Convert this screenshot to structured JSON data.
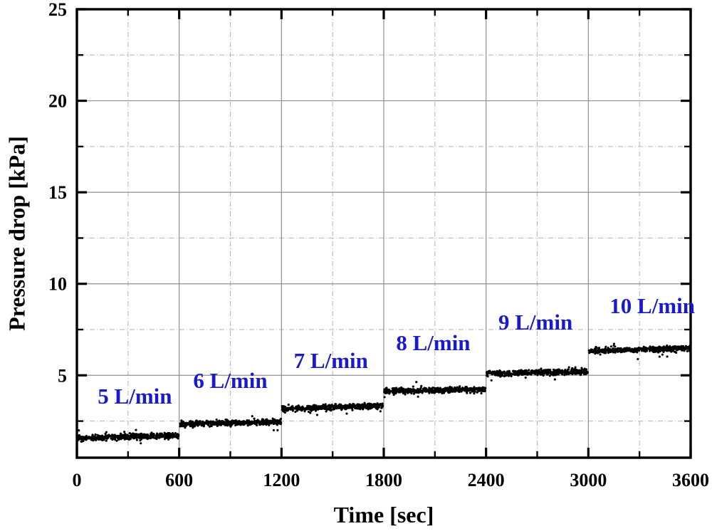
{
  "chart_data": {
    "type": "scatter",
    "title": "",
    "xlabel": "Time [sec]",
    "ylabel": "Pressure drop [kPa]",
    "xlim": [
      0,
      3600
    ],
    "ylim": [
      0.5,
      25
    ],
    "x_major_ticks": [
      0,
      600,
      1200,
      1800,
      2400,
      3000,
      3600
    ],
    "x_minor_ticks": [
      300,
      900,
      1500,
      2100,
      2700,
      3300
    ],
    "y_major_ticks": [
      5,
      10,
      15,
      20,
      25
    ],
    "y_minor_ticks": [
      2.5,
      7.5,
      12.5,
      17.5,
      22.5
    ],
    "grid": {
      "major_style": "solid",
      "major_color": "#8f8f8f",
      "minor_style": "dashed",
      "minor_color": "#b2b2b2"
    },
    "legend": "none",
    "background_color": "#ffffff",
    "frame_color": "#000000",
    "point_color": "#000000",
    "annotation_color": "#1a1acd",
    "series": [
      {
        "name": "5 L/min",
        "t_start": 0,
        "t_end": 600,
        "mean_kPa": 1.65,
        "drift_kPa": 0.15
      },
      {
        "name": "6 L/min",
        "t_start": 600,
        "t_end": 1200,
        "mean_kPa": 2.4,
        "drift_kPa": 0.12
      },
      {
        "name": "7 L/min",
        "t_start": 1200,
        "t_end": 1800,
        "mean_kPa": 3.25,
        "drift_kPa": 0.15
      },
      {
        "name": "8 L/min",
        "t_start": 1800,
        "t_end": 2400,
        "mean_kPa": 4.18,
        "drift_kPa": 0.12
      },
      {
        "name": "9 L/min",
        "t_start": 2400,
        "t_end": 3000,
        "mean_kPa": 5.15,
        "drift_kPa": 0.1
      },
      {
        "name": "10 L/min",
        "t_start": 3000,
        "t_end": 3600,
        "mean_kPa": 6.4,
        "drift_kPa": 0.15
      }
    ],
    "annotations": [
      {
        "text": "5 L/min",
        "x": 340,
        "y": 3.85
      },
      {
        "text": "6 L/min",
        "x": 900,
        "y": 4.7
      },
      {
        "text": "7 L/min",
        "x": 1490,
        "y": 5.8
      },
      {
        "text": "8 L/min",
        "x": 2090,
        "y": 6.75
      },
      {
        "text": "9 L/min",
        "x": 2690,
        "y": 7.9
      },
      {
        "text": "10 L/min",
        "x": 3375,
        "y": 8.8
      }
    ],
    "noise_band_kPa": 0.13,
    "points_per_segment": 520
  }
}
